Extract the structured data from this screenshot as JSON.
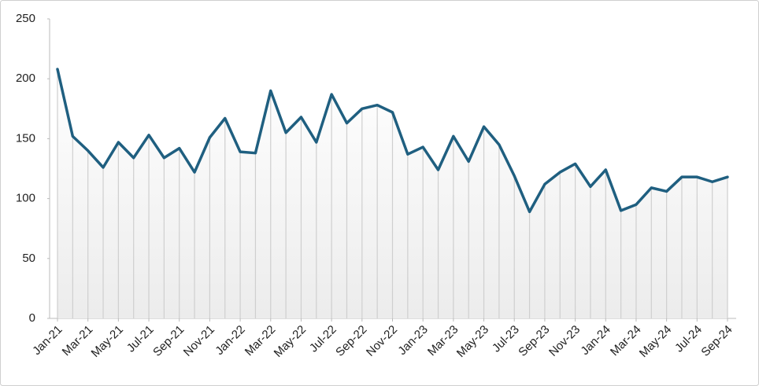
{
  "chart_data": {
    "type": "line",
    "categories": [
      "Jan-21",
      null,
      "Mar-21",
      null,
      "May-21",
      null,
      "Jul-21",
      null,
      "Sep-21",
      null,
      "Nov-21",
      null,
      "Jan-22",
      null,
      "Mar-22",
      null,
      "May-22",
      null,
      "Jul-22",
      null,
      "Sep-22",
      null,
      "Nov-22",
      null,
      "Jan-23",
      null,
      "Mar-23",
      null,
      "May-23",
      null,
      "Jul-23",
      null,
      "Sep-23",
      null,
      "Nov-23",
      null,
      "Jan-24",
      null,
      "Mar-24",
      null,
      "May-24",
      null,
      "Jul-24",
      null,
      "Sep-24"
    ],
    "values": [
      208,
      152,
      140,
      126,
      147,
      134,
      153,
      134,
      142,
      122,
      151,
      167,
      139,
      138,
      190,
      155,
      168,
      147,
      187,
      163,
      175,
      178,
      172,
      137,
      143,
      124,
      152,
      131,
      160,
      145,
      119,
      89,
      112,
      122,
      129,
      110,
      124,
      90,
      95,
      109,
      106,
      118,
      118,
      114,
      118
    ],
    "color": "#1f5f80",
    "ylim": [
      0,
      250
    ],
    "yticks": [
      0,
      50,
      100,
      150,
      200,
      250
    ]
  }
}
